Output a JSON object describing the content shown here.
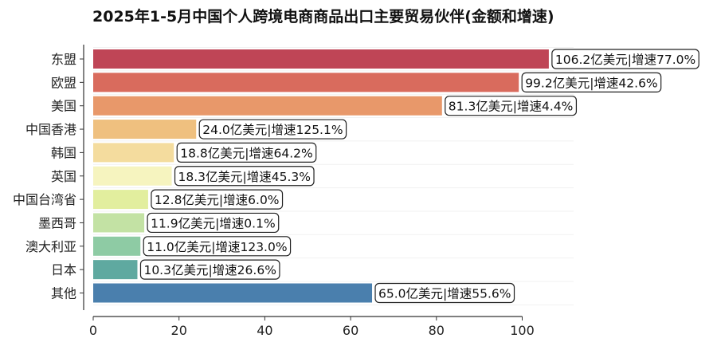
{
  "chart_data": {
    "type": "bar",
    "orientation": "horizontal",
    "title": "2025年1-5月中国个人跨境电商商品出口主要贸易伙伴(金额和增速)",
    "xlabel": "",
    "ylabel": "",
    "xlim": [
      0,
      110
    ],
    "xticks": [
      "0",
      "20",
      "40",
      "60",
      "80",
      "100"
    ],
    "categories": [
      "东盟",
      "欧盟",
      "美国",
      "中国香港",
      "韩国",
      "英国",
      "中国台湾省",
      "墨西哥",
      "澳大利亚",
      "日本",
      "其他"
    ],
    "values": [
      106.2,
      99.2,
      81.3,
      24.0,
      18.8,
      18.3,
      12.8,
      11.9,
      11.0,
      10.3,
      65.0
    ],
    "growth": [
      77.0,
      42.6,
      4.4,
      125.1,
      64.2,
      45.3,
      6.0,
      0.1,
      123.0,
      26.6,
      55.6
    ],
    "labels": [
      "106.2亿美元|增速77.0%",
      "99.2亿美元|增速42.6%",
      "81.3亿美元|增速4.4%",
      "24.0亿美元|增速125.1%",
      "18.8亿美元|增速64.2%",
      "18.3亿美元|增速45.3%",
      "12.8亿美元|增速6.0%",
      "11.9亿美元|增速0.1%",
      "11.0亿美元|增速123.0%",
      "10.3亿美元|增速26.6%",
      "65.0亿美元|增速55.6%"
    ],
    "colors": [
      "#bf4556",
      "#d96b5d",
      "#e8986a",
      "#efc07f",
      "#f4dc9e",
      "#f6f4bf",
      "#e2ee9e",
      "#c3e2a4",
      "#8ecba4",
      "#5fa9a0",
      "#4a7fad"
    ],
    "grid": true
  }
}
